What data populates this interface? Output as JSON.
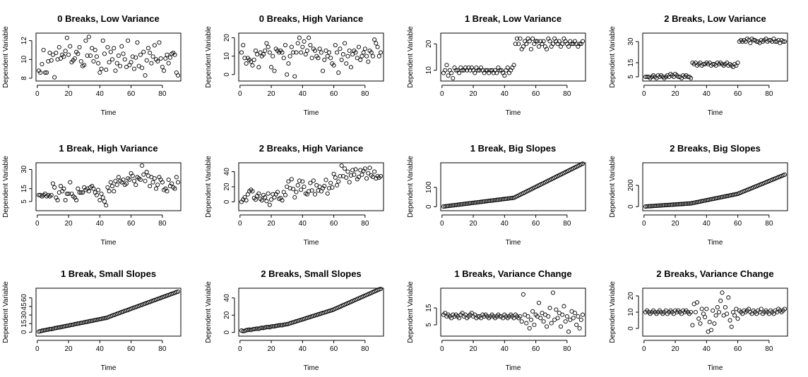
{
  "chart_data": [
    {
      "type": "scatter",
      "title": "0 Breaks, Low Variance",
      "xlabel": "Time",
      "ylabel": "Dependent Variable",
      "xlim": [
        1,
        90
      ],
      "ylim": [
        8,
        12.5
      ],
      "xticks": [
        0,
        20,
        40,
        60,
        80
      ],
      "yticks": [
        8,
        10,
        12
      ],
      "y": [
        8.8,
        8.6,
        9.5,
        11.0,
        8.6,
        8.6,
        9.8,
        10.7,
        9.9,
        10.5,
        8.1,
        10.7,
        10.0,
        11.3,
        10.1,
        10.5,
        10.3,
        10.9,
        12.3,
        10.5,
        11.4,
        9.7,
        9.9,
        10.1,
        10.8,
        10.6,
        11.3,
        9.8,
        9.3,
        9.4,
        12.0,
        10.4,
        12.4,
        10.4,
        11.2,
        9.8,
        11.0,
        10.3,
        9.6,
        8.6,
        9.0,
        12.0,
        10.6,
        8.9,
        11.3,
        9.7,
        10.8,
        10.0,
        11.2,
        8.8,
        9.6,
        10.4,
        9.3,
        11.4,
        10.6,
        10.0,
        9.2,
        12.0,
        9.4,
        9.7,
        10.3,
        9.0,
        10.2,
        11.8,
        9.3,
        10.5,
        9.1,
        10.8,
        8.3,
        9.9,
        11.2,
        10.7,
        9.6,
        10.3,
        11.5,
        10.0,
        9.8,
        11.8,
        10.1,
        9.2,
        8.8,
        10.1,
        10.5,
        9.6,
        10.2,
        10.6,
        10.7,
        10.5,
        8.6,
        8.3
      ],
      "series": []
    },
    {
      "type": "scatter",
      "title": "0 Breaks, High Variance",
      "xlabel": "Time",
      "ylabel": "Dependent Variable",
      "xlim": [
        1,
        90
      ],
      "ylim": [
        -2,
        21
      ],
      "xticks": [
        0,
        20,
        40,
        60,
        80
      ],
      "yticks": [
        0,
        10,
        20
      ],
      "y": [
        12,
        16,
        9,
        6,
        9,
        8,
        7,
        5,
        8,
        13,
        11,
        4,
        12,
        10,
        11,
        13,
        17,
        15,
        12,
        4,
        10,
        2,
        14,
        13,
        12,
        13,
        12,
        9,
        16,
        0,
        6,
        10,
        15,
        12,
        -1,
        12,
        17,
        20,
        12,
        15,
        18,
        11,
        13,
        20,
        16,
        9,
        14,
        13,
        10,
        9,
        14,
        12,
        2,
        8,
        13,
        10,
        12,
        9,
        6,
        5,
        16,
        12,
        1,
        14,
        8,
        11,
        17,
        6,
        10,
        13,
        4,
        11,
        13,
        12,
        9,
        15,
        8,
        10,
        12,
        14,
        10,
        7,
        13,
        12,
        10,
        19,
        17,
        15,
        10,
        12
      ],
      "series": []
    },
    {
      "type": "scatter",
      "title": "1 Break, Low Variance",
      "xlabel": "Time",
      "ylabel": "Dependent Variable",
      "xlim": [
        1,
        90
      ],
      "ylim": [
        7,
        23
      ],
      "xticks": [
        0,
        20,
        40,
        60,
        80
      ],
      "yticks": [
        10,
        20
      ],
      "y": [
        9,
        10,
        12,
        8,
        10,
        9,
        7,
        11,
        10,
        10,
        9,
        11,
        10,
        10,
        11,
        10,
        11,
        10,
        11,
        10,
        9,
        11,
        10,
        10,
        11,
        10,
        9,
        10,
        10,
        9,
        10,
        10,
        9,
        10,
        9,
        11,
        10,
        10,
        9,
        8,
        10,
        11,
        9,
        10,
        11,
        12,
        20,
        22,
        20,
        22,
        18,
        19,
        21,
        20,
        22,
        21,
        18,
        22,
        20,
        21,
        21,
        19,
        21,
        20,
        21,
        19,
        18,
        22,
        21,
        19,
        20,
        22,
        21,
        20,
        21,
        19,
        20,
        22,
        21,
        20,
        19,
        21,
        20,
        20,
        21,
        20,
        19,
        20,
        20,
        21
      ],
      "series": []
    },
    {
      "type": "scatter",
      "title": "2 Breaks, Low Variance",
      "xlabel": "Time",
      "ylabel": "Dependent Variable",
      "xlim": [
        1,
        90
      ],
      "ylim": [
        4,
        34
      ],
      "xticks": [
        0,
        20,
        40,
        60,
        80
      ],
      "yticks": [
        5,
        15,
        30
      ],
      "y": [
        5,
        5,
        5,
        4,
        5,
        6,
        5,
        4,
        6,
        5,
        6,
        5,
        4,
        5,
        6,
        5,
        7,
        6,
        5,
        7,
        6,
        5,
        5,
        4,
        6,
        5,
        6,
        5,
        5,
        4,
        15,
        14,
        15,
        13,
        14,
        15,
        13,
        14,
        14,
        15,
        14,
        15,
        13,
        14,
        14,
        13,
        15,
        14,
        15,
        14,
        13,
        14,
        15,
        13,
        14,
        13,
        12,
        14,
        13,
        15,
        30,
        31,
        30,
        31,
        30,
        32,
        31,
        29,
        32,
        31,
        31,
        30,
        30,
        29,
        31,
        30,
        31,
        32,
        30,
        31,
        31,
        30,
        32,
        30,
        30,
        31,
        29,
        31,
        30,
        30
      ],
      "series": []
    },
    {
      "type": "scatter",
      "title": "1 Break, High Variance",
      "xlabel": "Time",
      "ylabel": "Dependent Variable",
      "xlim": [
        1,
        90
      ],
      "ylim": [
        0,
        33
      ],
      "xticks": [
        0,
        20,
        40,
        60,
        80
      ],
      "yticks": [
        5,
        15,
        30
      ],
      "y": [
        10,
        10,
        9,
        10,
        11,
        9,
        10,
        9,
        10,
        19,
        16,
        8,
        6,
        12,
        17,
        13,
        15,
        6,
        11,
        11,
        20,
        11,
        9,
        8,
        6,
        15,
        12,
        12,
        12,
        16,
        14,
        15,
        13,
        16,
        17,
        15,
        12,
        10,
        14,
        6,
        11,
        8,
        5,
        2,
        16,
        13,
        20,
        17,
        13,
        21,
        18,
        24,
        21,
        20,
        22,
        18,
        19,
        23,
        22,
        27,
        25,
        21,
        18,
        24,
        23,
        22,
        33,
        26,
        21,
        28,
        25,
        17,
        24,
        20,
        23,
        15,
        18,
        24,
        22,
        20,
        14,
        15,
        13,
        22,
        17,
        19,
        16,
        15,
        24,
        20
      ],
      "series": []
    },
    {
      "type": "scatter",
      "title": "2 Breaks, High Variance",
      "xlabel": "Time",
      "ylabel": "Dependent Variable",
      "xlim": [
        1,
        90
      ],
      "ylim": [
        -8,
        48
      ],
      "xticks": [
        0,
        20,
        40,
        60,
        80
      ],
      "yticks": [
        0,
        20,
        40
      ],
      "y": [
        0,
        3,
        6,
        2,
        10,
        14,
        16,
        14,
        5,
        3,
        8,
        11,
        4,
        2,
        9,
        6,
        1,
        11,
        -4,
        3,
        10,
        6,
        10,
        13,
        4,
        5,
        2,
        13,
        9,
        20,
        27,
        18,
        30,
        17,
        6,
        13,
        22,
        28,
        16,
        27,
        20,
        11,
        10,
        14,
        25,
        15,
        28,
        10,
        22,
        15,
        20,
        14,
        18,
        21,
        29,
        11,
        18,
        25,
        19,
        37,
        32,
        22,
        27,
        34,
        48,
        34,
        44,
        32,
        40,
        26,
        35,
        42,
        36,
        43,
        30,
        33,
        42,
        36,
        41,
        44,
        31,
        38,
        45,
        35,
        33,
        40,
        31,
        34,
        32,
        34
      ],
      "series": []
    },
    {
      "type": "scatter",
      "title": "1 Break, Big Slopes",
      "xlabel": "Time",
      "ylabel": "Dependent Variable",
      "xlim": [
        1,
        90
      ],
      "ylim": [
        -6,
        212
      ],
      "xticks": [
        0,
        20,
        40,
        60,
        80
      ],
      "yticks": [
        0,
        100
      ],
      "y": [
        1,
        2,
        3,
        4,
        5,
        6,
        7,
        8,
        9,
        10,
        11,
        12,
        13,
        14,
        15,
        16,
        17,
        18,
        19,
        20,
        21,
        22,
        23,
        24,
        25,
        26,
        27,
        28,
        29,
        30,
        31,
        32,
        33,
        34,
        35,
        36,
        37,
        38,
        39,
        40,
        41,
        42,
        43,
        44,
        45,
        46,
        50,
        54,
        58,
        62,
        66,
        70,
        74,
        78,
        82,
        86,
        90,
        94,
        98,
        102,
        106,
        110,
        114,
        118,
        122,
        126,
        130,
        134,
        138,
        142,
        146,
        150,
        154,
        158,
        162,
        166,
        170,
        174,
        178,
        182,
        186,
        190,
        194,
        198,
        202,
        206,
        210,
        214,
        218,
        222
      ],
      "series": []
    },
    {
      "type": "scatter",
      "title": "2 Breaks, Big Slopes",
      "xlabel": "Time",
      "ylabel": "Dependent Variable",
      "xlim": [
        1,
        90
      ],
      "ylim": [
        -12,
        385
      ],
      "xticks": [
        0,
        20,
        40,
        60,
        80
      ],
      "yticks": [
        0,
        200
      ],
      "y": [
        1,
        2,
        3,
        4,
        5,
        6,
        7,
        8,
        9,
        10,
        11,
        12,
        13,
        14,
        15,
        16,
        17,
        18,
        19,
        20,
        21,
        22,
        23,
        24,
        25,
        26,
        27,
        28,
        29,
        30,
        33,
        36,
        39,
        42,
        45,
        48,
        51,
        54,
        57,
        60,
        63,
        66,
        69,
        72,
        75,
        78,
        81,
        84,
        87,
        90,
        93,
        96,
        99,
        102,
        105,
        108,
        111,
        114,
        117,
        120,
        126,
        132,
        138,
        144,
        150,
        156,
        162,
        168,
        174,
        180,
        186,
        192,
        198,
        204,
        210,
        216,
        222,
        228,
        234,
        240,
        246,
        252,
        258,
        264,
        270,
        276,
        282,
        288,
        294,
        300
      ],
      "series": []
    },
    {
      "type": "scatter",
      "title": "1 Break, Small Slopes",
      "xlabel": "Time",
      "ylabel": "Dependent Variable",
      "xlim": [
        1,
        90
      ],
      "ylim": [
        -2,
        72
      ],
      "xticks": [
        0,
        20,
        40,
        60,
        80
      ],
      "yticks": [
        0,
        15,
        30,
        45,
        60
      ],
      "y": [
        1.0,
        1.8,
        2.5,
        3.1,
        3.4,
        4.2,
        4.6,
        5.3,
        5.5,
        6.0,
        6.8,
        7.3,
        7.9,
        8.2,
        8.8,
        9.5,
        10.0,
        10.6,
        11.2,
        11.5,
        12.3,
        12.8,
        13.2,
        13.9,
        14.5,
        15.1,
        15.4,
        16.2,
        16.5,
        17.2,
        17.8,
        18.3,
        18.9,
        19.5,
        19.8,
        20.5,
        21.1,
        21.6,
        22.2,
        22.8,
        23.3,
        23.9,
        24.4,
        24.9,
        25.6,
        27.0,
        28.0,
        29.1,
        30.0,
        31.0,
        32.1,
        33.0,
        34.0,
        35.2,
        36.0,
        37.1,
        38.0,
        38.9,
        40.0,
        41.1,
        42.0,
        43.1,
        44.0,
        45.0,
        46.1,
        47.0,
        48.0,
        49.1,
        50.0,
        51.0,
        52.1,
        53.0,
        54.0,
        55.1,
        56.0,
        57.0,
        58.1,
        59.0,
        60.0,
        61.1,
        62.0,
        63.0,
        64.1,
        65.0,
        66.0,
        67.1,
        68.0,
        69.0,
        70.1,
        71.0
      ],
      "series": []
    },
    {
      "type": "scatter",
      "title": "2 Breaks, Small Slopes",
      "xlabel": "Time",
      "ylabel": "Dependent Variable",
      "xlim": [
        1,
        90
      ],
      "ylim": [
        -1,
        48
      ],
      "xticks": [
        0,
        20,
        40,
        60,
        80
      ],
      "yticks": [
        0,
        20,
        40
      ],
      "y": [
        2.2,
        1.5,
        1.8,
        2.6,
        2.9,
        3.3,
        2.8,
        3.6,
        3.9,
        4.2,
        4.5,
        4.1,
        5.0,
        5.4,
        5.2,
        5.8,
        6.1,
        6.3,
        6.0,
        6.8,
        7.1,
        7.0,
        7.6,
        7.9,
        8.2,
        8.5,
        8.3,
        9.0,
        9.3,
        9.5,
        10.0,
        10.6,
        11.2,
        11.7,
        12.3,
        12.9,
        13.4,
        14.0,
        14.6,
        15.1,
        15.7,
        16.3,
        16.9,
        17.4,
        18.0,
        18.6,
        19.1,
        19.7,
        20.3,
        20.9,
        21.4,
        22.0,
        22.6,
        23.1,
        23.7,
        24.3,
        24.9,
        25.4,
        26.0,
        26.6,
        27.5,
        28.3,
        29.1,
        29.9,
        30.7,
        31.5,
        32.3,
        33.1,
        33.9,
        34.7,
        35.5,
        36.3,
        37.1,
        37.9,
        38.7,
        39.5,
        40.3,
        41.1,
        41.9,
        42.7,
        43.5,
        44.3,
        45.1,
        45.9,
        46.7,
        47.5,
        48.3,
        49.1,
        49.9,
        50.7
      ],
      "series": []
    },
    {
      "type": "scatter",
      "title": "1 Breaks, Variance Change",
      "xlabel": "Time",
      "ylabel": "Dependent Variable",
      "xlim": [
        1,
        90
      ],
      "ylim": [
        0,
        25
      ],
      "xticks": [
        0,
        20,
        40,
        60,
        80
      ],
      "yticks": [
        5,
        15
      ],
      "y": [
        11,
        12,
        10,
        11,
        10,
        9,
        11,
        10,
        11,
        10,
        9,
        11,
        12,
        10,
        11,
        9,
        10,
        11,
        12,
        10,
        11,
        9,
        10,
        10,
        9,
        11,
        10,
        11,
        10,
        9,
        10,
        11,
        10,
        9,
        10,
        11,
        10,
        10,
        9,
        11,
        10,
        9,
        10,
        11,
        10,
        9,
        11,
        10,
        9,
        10,
        7,
        23,
        11,
        6,
        10,
        3,
        8,
        13,
        5,
        11,
        10,
        18,
        9,
        12,
        7,
        11,
        4,
        10,
        15,
        6,
        24,
        8,
        14,
        9,
        12,
        4,
        11,
        16,
        7,
        10,
        1,
        8,
        13,
        9,
        12,
        5,
        10,
        3,
        8,
        11
      ],
      "series": []
    },
    {
      "type": "scatter",
      "title": "2 Breaks, Variance Change",
      "xlabel": "Time",
      "ylabel": "Dependent Variable",
      "xlim": [
        1,
        90
      ],
      "ylim": [
        -3,
        23
      ],
      "xticks": [
        0,
        20,
        40,
        60,
        80
      ],
      "yticks": [
        0,
        10,
        20
      ],
      "y": [
        10,
        11,
        10,
        9,
        10,
        11,
        10,
        9,
        10,
        11,
        10,
        9,
        10,
        11,
        9,
        10,
        11,
        10,
        9,
        11,
        10,
        11,
        10,
        9,
        11,
        10,
        11,
        10,
        9,
        10,
        2,
        15,
        10,
        16,
        6,
        3,
        12,
        9,
        7,
        12,
        -2,
        4,
        -1,
        11,
        3,
        8,
        13,
        10,
        17,
        22,
        8,
        13,
        9,
        19,
        5,
        1,
        10,
        8,
        12,
        6,
        11,
        10,
        9,
        11,
        10,
        11,
        12,
        10,
        9,
        11,
        10,
        9,
        11,
        10,
        12,
        9,
        10,
        11,
        10,
        9,
        11,
        10,
        9,
        11,
        10,
        12,
        11,
        10,
        11,
        12
      ],
      "series": []
    }
  ]
}
